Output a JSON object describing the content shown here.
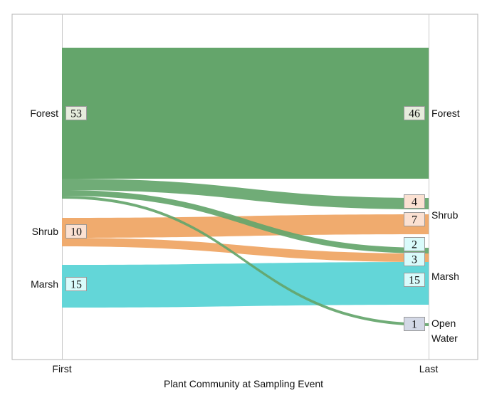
{
  "chart_data": {
    "type": "sankey",
    "title": "",
    "xlabel": "Plant Community at Sampling Event",
    "x_ticks": [
      "First",
      "Last"
    ],
    "colors": {
      "Forest": "#64a56b",
      "Shrub": "#f0ab6e",
      "Marsh": "#63d6d8",
      "Open Water": "#d3d8e6"
    },
    "box_colors": {
      "Forest": "#e6ecdd",
      "Shrub": "#fbe1d2",
      "Marsh": "#d9fbfb",
      "Open Water": "#d3d8e6"
    },
    "source_nodes": [
      {
        "name": "Forest",
        "label": "Forest",
        "total": 53
      },
      {
        "name": "Shrub",
        "label": "Shrub",
        "total": 10
      },
      {
        "name": "Marsh",
        "label": "Marsh",
        "total": 15
      }
    ],
    "target_nodes": [
      {
        "name": "Forest",
        "label": [
          "Forest"
        ],
        "total": 46
      },
      {
        "name": "Shrub",
        "label": [
          "Shrub"
        ],
        "total": 11
      },
      {
        "name": "Marsh",
        "label": [
          "Marsh"
        ],
        "total": 20
      },
      {
        "name": "Open Water",
        "label": [
          "Open",
          "Water"
        ],
        "total": 1
      }
    ],
    "flows": [
      {
        "from": "Forest",
        "to": "Forest",
        "value": 46
      },
      {
        "from": "Forest",
        "to": "Shrub",
        "value": 4
      },
      {
        "from": "Forest",
        "to": "Marsh",
        "value": 2
      },
      {
        "from": "Forest",
        "to": "Open Water",
        "value": 1
      },
      {
        "from": "Shrub",
        "to": "Shrub",
        "value": 7
      },
      {
        "from": "Shrub",
        "to": "Marsh",
        "value": 3
      },
      {
        "from": "Marsh",
        "to": "Marsh",
        "value": 15
      }
    ],
    "target_labels": [
      {
        "text": "46",
        "color_of": "Forest"
      },
      {
        "text": "4",
        "color_of": "Shrub"
      },
      {
        "text": "7",
        "color_of": "Shrub"
      },
      {
        "text": "2",
        "color_of": "Marsh"
      },
      {
        "text": "3",
        "color_of": "Marsh"
      },
      {
        "text": "15",
        "color_of": "Marsh"
      },
      {
        "text": "1",
        "color_of": "Open Water"
      }
    ]
  }
}
